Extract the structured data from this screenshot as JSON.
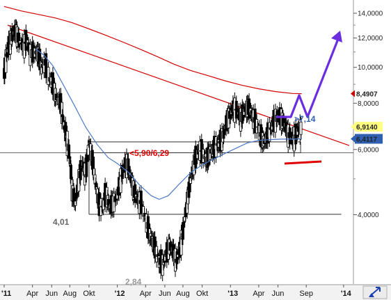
{
  "chart_data": {
    "type": "candlestick",
    "y_scale": "log",
    "ylim": [
      2.6,
      15.2
    ],
    "y_ticks": [
      {
        "value": 4,
        "label": "4,0000"
      },
      {
        "value": 6,
        "label": "6,0000"
      },
      {
        "value": 8,
        "label": "8,0000"
      },
      {
        "value": 10,
        "label": "10,0000"
      },
      {
        "value": 12,
        "label": "12,0000"
      },
      {
        "value": 14,
        "label": "14,0000"
      }
    ],
    "x_ticks": [
      "'11",
      "Apr",
      "Jun",
      "Aug",
      "Okt",
      "'12",
      "Apr",
      "Jun",
      "Aug",
      "Okt",
      "'13",
      "Apr",
      "Jun",
      "Sep",
      "'14"
    ],
    "price_badges": [
      {
        "value": 8.4907,
        "label": "8,4907",
        "color": "#d40000"
      },
      {
        "value": 6.914,
        "label": "6,9140",
        "color": "#000000",
        "bg": "#ffff80"
      },
      {
        "value": 6.4117,
        "label": "6,4117",
        "color": "#ffffff",
        "bg": "#2f5fb0"
      }
    ],
    "annotations": [
      {
        "text": "<5,90/6,29",
        "color": "#e00000"
      },
      {
        "text": ">7,14",
        "color": "#2f5fb0"
      },
      {
        "text": "4,01",
        "color": "#666666"
      },
      {
        "text": "2,84",
        "color": "#999999"
      }
    ],
    "series": [
      {
        "kind": "price",
        "color": "#000000",
        "points": [
          [
            2011.0,
            9.6
          ],
          [
            2011.02,
            10.8
          ],
          [
            2011.04,
            11.4
          ],
          [
            2011.07,
            12.2
          ],
          [
            2011.1,
            12.6
          ],
          [
            2011.13,
            11.8
          ],
          [
            2011.17,
            11.4
          ],
          [
            2011.2,
            11.9
          ],
          [
            2011.23,
            10.9
          ],
          [
            2011.27,
            11.0
          ],
          [
            2011.3,
            10.9
          ],
          [
            2011.33,
            10.0
          ],
          [
            2011.36,
            10.3
          ],
          [
            2011.4,
            9.3
          ],
          [
            2011.43,
            9.0
          ],
          [
            2011.46,
            8.3
          ],
          [
            2011.5,
            8.0
          ],
          [
            2011.52,
            7.2
          ],
          [
            2011.55,
            6.5
          ],
          [
            2011.58,
            5.7
          ],
          [
            2011.6,
            4.7
          ],
          [
            2011.63,
            4.3
          ],
          [
            2011.66,
            5.0
          ],
          [
            2011.69,
            5.5
          ],
          [
            2011.72,
            5.1
          ],
          [
            2011.75,
            6.3
          ],
          [
            2011.78,
            5.6
          ],
          [
            2011.81,
            4.8
          ],
          [
            2011.84,
            4.25
          ],
          [
            2011.87,
            4.2
          ],
          [
            2011.9,
            4.6
          ],
          [
            2011.93,
            4.2
          ],
          [
            2011.96,
            4.3
          ],
          [
            2012.0,
            4.5
          ],
          [
            2012.03,
            5.0
          ],
          [
            2012.06,
            5.4
          ],
          [
            2012.09,
            5.5
          ],
          [
            2012.12,
            5.0
          ],
          [
            2012.15,
            4.6
          ],
          [
            2012.18,
            4.4
          ],
          [
            2012.21,
            4.3
          ],
          [
            2012.25,
            3.9
          ],
          [
            2012.28,
            3.6
          ],
          [
            2012.31,
            3.4
          ],
          [
            2012.34,
            3.2
          ],
          [
            2012.37,
            3.0
          ],
          [
            2012.4,
            2.95
          ],
          [
            2012.43,
            3.1
          ],
          [
            2012.46,
            3.3
          ],
          [
            2012.49,
            3.2
          ],
          [
            2012.52,
            3.0
          ],
          [
            2012.55,
            3.2
          ],
          [
            2012.58,
            3.6
          ],
          [
            2012.61,
            4.2
          ],
          [
            2012.64,
            4.8
          ],
          [
            2012.67,
            5.4
          ],
          [
            2012.7,
            5.8
          ],
          [
            2012.73,
            6.0
          ],
          [
            2012.76,
            5.8
          ],
          [
            2012.79,
            5.6
          ],
          [
            2012.82,
            5.9
          ],
          [
            2012.85,
            6.0
          ],
          [
            2012.88,
            6.2
          ],
          [
            2012.91,
            6.3
          ],
          [
            2012.94,
            6.6
          ],
          [
            2012.97,
            7.2
          ],
          [
            2013.0,
            7.5
          ],
          [
            2013.03,
            7.8
          ],
          [
            2013.06,
            7.6
          ],
          [
            2013.09,
            7.3
          ],
          [
            2013.12,
            7.6
          ],
          [
            2013.15,
            7.8
          ],
          [
            2013.18,
            7.6
          ],
          [
            2013.21,
            7.2
          ],
          [
            2013.24,
            6.9
          ],
          [
            2013.27,
            6.5
          ],
          [
            2013.3,
            6.3
          ],
          [
            2013.33,
            6.6
          ],
          [
            2013.36,
            6.9
          ],
          [
            2013.39,
            7.2
          ],
          [
            2013.42,
            7.4
          ],
          [
            2013.45,
            7.3
          ],
          [
            2013.48,
            7.0
          ],
          [
            2013.51,
            6.6
          ],
          [
            2013.54,
            6.4
          ],
          [
            2013.57,
            6.5
          ],
          [
            2013.6,
            6.8
          ],
          [
            2013.63,
            6.91
          ]
        ]
      },
      {
        "kind": "ma-short",
        "color": "#4a78c8",
        "points": [
          [
            2011.28,
            11.2
          ],
          [
            2011.35,
            10.8
          ],
          [
            2011.43,
            10.1
          ],
          [
            2011.52,
            9.0
          ],
          [
            2011.62,
            7.9
          ],
          [
            2011.72,
            6.9
          ],
          [
            2011.82,
            6.2
          ],
          [
            2011.92,
            5.7
          ],
          [
            2012.0,
            5.5
          ],
          [
            2012.1,
            5.2
          ],
          [
            2012.2,
            4.8
          ],
          [
            2012.3,
            4.5
          ],
          [
            2012.37,
            4.4
          ],
          [
            2012.45,
            4.5
          ],
          [
            2012.55,
            4.85
          ],
          [
            2012.65,
            5.2
          ],
          [
            2012.75,
            5.45
          ],
          [
            2012.85,
            5.65
          ],
          [
            2012.95,
            5.85
          ],
          [
            2013.05,
            6.05
          ],
          [
            2013.15,
            6.25
          ],
          [
            2013.25,
            6.35
          ],
          [
            2013.35,
            6.38
          ],
          [
            2013.45,
            6.4
          ],
          [
            2013.55,
            6.4
          ],
          [
            2013.63,
            6.41
          ]
        ]
      },
      {
        "kind": "ma-long",
        "color": "#d40000",
        "points": [
          [
            2011.0,
            14.6
          ],
          [
            2011.15,
            14.2
          ],
          [
            2011.3,
            13.9
          ],
          [
            2011.45,
            13.6
          ],
          [
            2011.6,
            13.2
          ],
          [
            2011.75,
            12.7
          ],
          [
            2011.9,
            12.2
          ],
          [
            2012.05,
            11.7
          ],
          [
            2012.2,
            11.2
          ],
          [
            2012.35,
            10.7
          ],
          [
            2012.5,
            10.2
          ],
          [
            2012.65,
            9.8
          ],
          [
            2012.8,
            9.5
          ],
          [
            2012.95,
            9.2
          ],
          [
            2013.1,
            8.95
          ],
          [
            2013.25,
            8.75
          ],
          [
            2013.4,
            8.6
          ],
          [
            2013.55,
            8.5
          ],
          [
            2013.63,
            8.49
          ]
        ]
      }
    ]
  }
}
